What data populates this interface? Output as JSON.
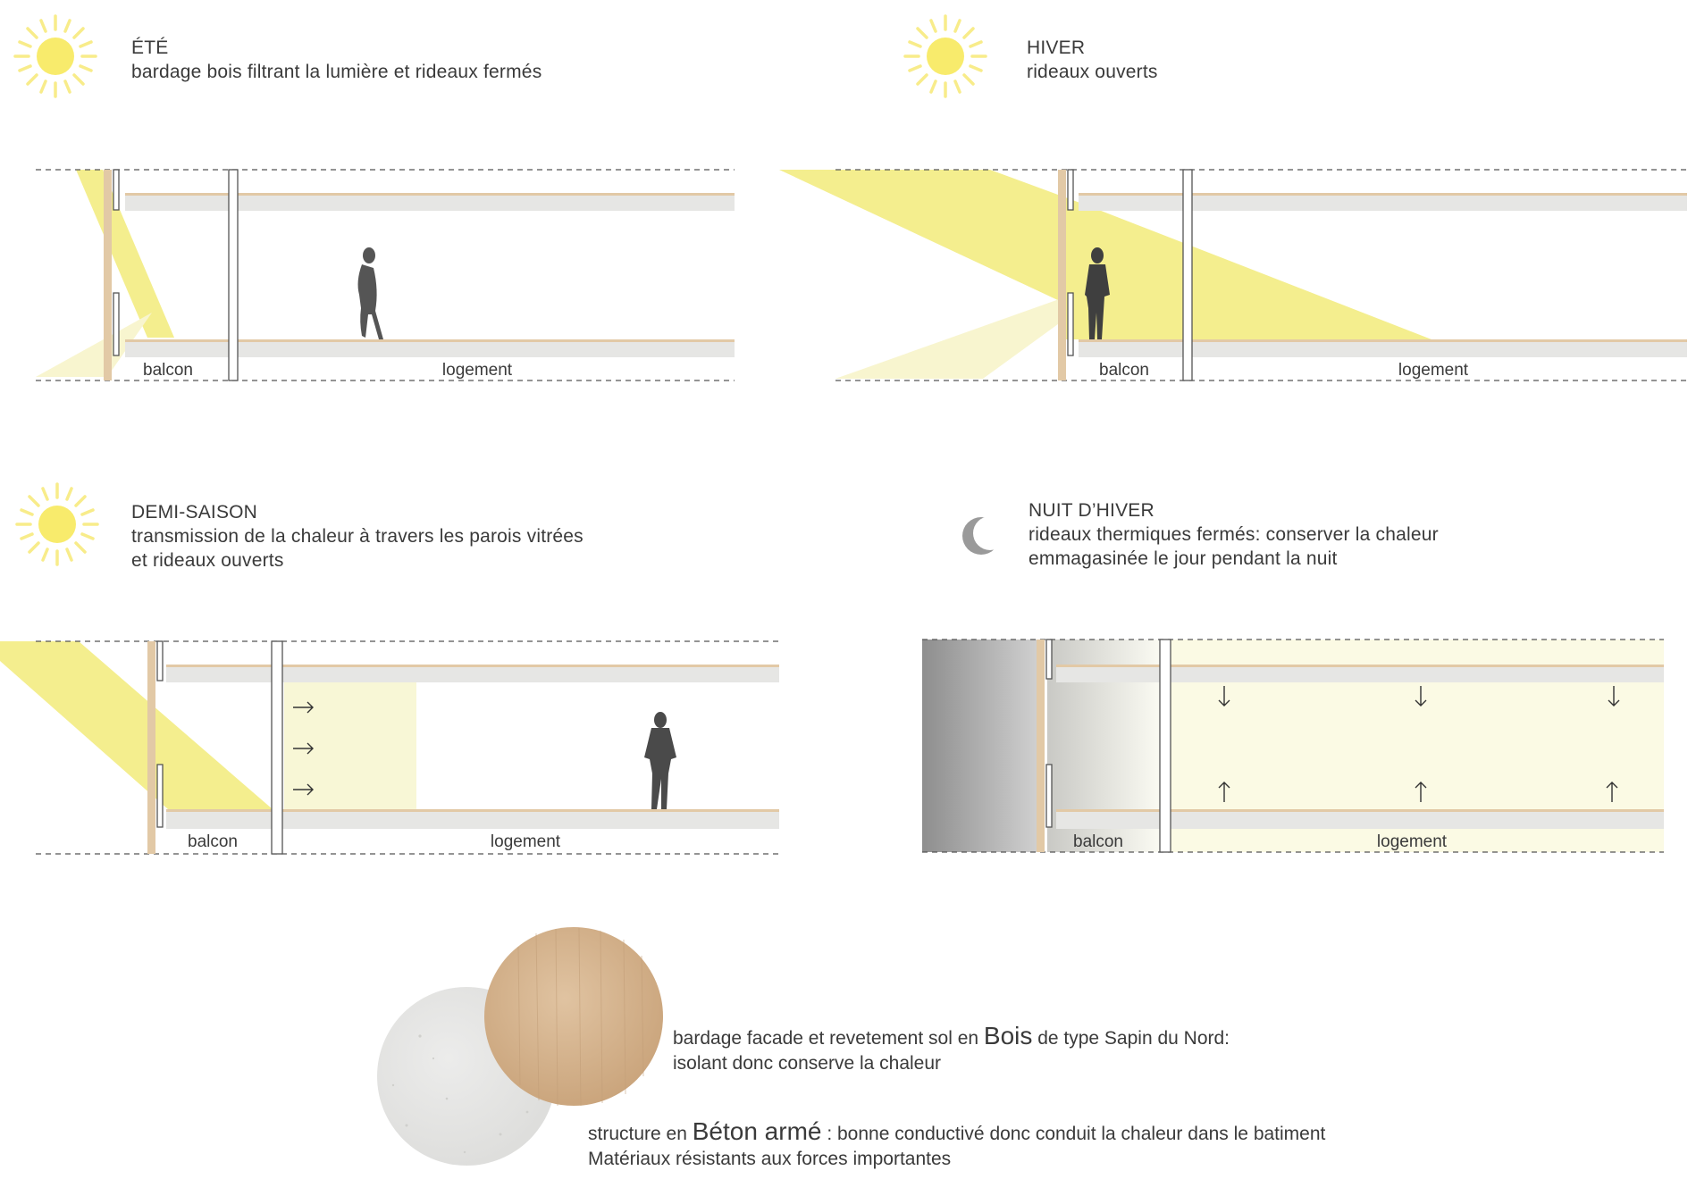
{
  "panels": {
    "ete": {
      "title": "ÉTÉ",
      "lines": [
        "bardage bois filtrant la lumière et rideaux fermés"
      ],
      "icon": "sun-icon"
    },
    "hiver": {
      "title": "HIVER",
      "lines": [
        "rideaux ouverts"
      ],
      "icon": "sun-icon"
    },
    "demi_saison": {
      "title": "DEMI-SAISON",
      "lines": [
        "transmission de la chaleur à travers les parois vitrées",
        "et rideaux ouverts"
      ],
      "icon": "sun-icon"
    },
    "nuit_hiver": {
      "title": "NUIT D’HIVER",
      "lines": [
        "rideaux thermiques fermés: conserver la chaleur",
        "emmagasinée le jour pendant la nuit"
      ],
      "icon": "moon-icon"
    }
  },
  "labels": {
    "balcon": "balcon",
    "logement": "logement"
  },
  "materials": {
    "bois": {
      "pre": "bardage facade et revetement sol en ",
      "word": "Bois",
      "post": " de type Sapin du Nord:",
      "line2": "isolant donc conserve la chaleur"
    },
    "beton": {
      "pre": "structure en ",
      "word": "Béton armé",
      "post": " : bonne conductivé donc conduit la chaleur dans le batiment",
      "line2": "Matériaux résistants aux forces importantes"
    }
  },
  "colors": {
    "sun": "#f6ea6a",
    "light": "#f3ef8f",
    "wood": "#e2c9a6",
    "concrete": "#e6e6e4",
    "text": "#3a3a3a"
  }
}
